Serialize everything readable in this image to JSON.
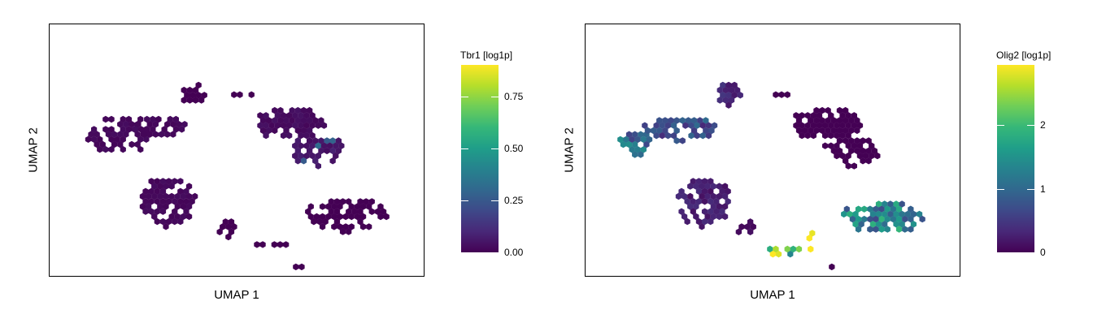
{
  "chart_data": [
    {
      "type": "scatter",
      "xlabel": "UMAP 1",
      "ylabel": "UMAP 2",
      "legend_title": "Tbr1 [log1p]",
      "colorbar_ticks": [
        "0.00",
        "0.25",
        "0.50",
        "0.75"
      ],
      "colorbar_tick_values": [
        0.0,
        0.25,
        0.5,
        0.75
      ],
      "color_range": [
        0.0,
        0.9
      ],
      "colormap": "viridis",
      "legend_placement": "right",
      "clusters": [
        {
          "cx": 0.148,
          "cy": 0.885,
          "rx": 0.012,
          "ry": 0.01,
          "density": 0.9,
          "value": 0.05,
          "hot": 0.8
        },
        {
          "cx": 0.455,
          "cy": 0.96,
          "rx": 0.006,
          "ry": 0.012,
          "density": 0.8,
          "value": 0.0
        },
        {
          "cx": 0.385,
          "cy": 0.73,
          "rx": 0.035,
          "ry": 0.05,
          "density": 0.75,
          "value": 0.0
        },
        {
          "cx": 0.52,
          "cy": 0.73,
          "rx": 0.06,
          "ry": 0.012,
          "density": 0.5,
          "value": 0.0
        },
        {
          "cx": 0.185,
          "cy": 0.565,
          "rx": 0.09,
          "ry": 0.08,
          "density": 0.7,
          "value": 0.02
        },
        {
          "cx": 0.285,
          "cy": 0.6,
          "rx": 0.08,
          "ry": 0.045,
          "density": 0.7,
          "value": 0.02
        },
        {
          "cx": 0.645,
          "cy": 0.61,
          "rx": 0.1,
          "ry": 0.07,
          "density": 0.85,
          "value": 0.03
        },
        {
          "cx": 0.71,
          "cy": 0.5,
          "rx": 0.08,
          "ry": 0.06,
          "density": 0.75,
          "value": 0.06,
          "hot": 0.45
        },
        {
          "cx": 0.315,
          "cy": 0.3,
          "rx": 0.075,
          "ry": 0.1,
          "density": 0.8,
          "value": 0.02
        },
        {
          "cx": 0.79,
          "cy": 0.25,
          "rx": 0.11,
          "ry": 0.07,
          "density": 0.7,
          "value": 0.0
        },
        {
          "cx": 0.475,
          "cy": 0.2,
          "rx": 0.03,
          "ry": 0.04,
          "density": 0.6,
          "value": 0.0
        },
        {
          "cx": 0.57,
          "cy": 0.13,
          "rx": 0.08,
          "ry": 0.02,
          "density": 0.55,
          "value": 0.0
        },
        {
          "cx": 0.66,
          "cy": 0.05,
          "rx": 0.02,
          "ry": 0.012,
          "density": 0.8,
          "value": 0.0
        },
        {
          "cx": 0.055,
          "cy": 0.3,
          "rx": 0.012,
          "ry": 0.006,
          "density": 0.8,
          "value": 0.0
        },
        {
          "cx": 0.955,
          "cy": 0.5,
          "rx": 0.012,
          "ry": 0.008,
          "density": 0.8,
          "value": 0.0
        },
        {
          "cx": 0.43,
          "cy": 0.45,
          "rx": 0.008,
          "ry": 0.008,
          "density": 0.8,
          "value": 0.0
        }
      ]
    },
    {
      "type": "scatter",
      "xlabel": "UMAP 1",
      "ylabel": "UMAP 2",
      "legend_title": "Olig2 [log1p]",
      "colorbar_ticks": [
        "0",
        "1",
        "2"
      ],
      "colorbar_tick_values": [
        0,
        1,
        2
      ],
      "color_range": [
        0.0,
        2.95
      ],
      "colormap": "viridis",
      "legend_placement": "right",
      "clusters": [
        {
          "cx": 0.148,
          "cy": 0.86,
          "rx": 0.012,
          "ry": 0.01,
          "density": 0.9,
          "value": 0.0
        },
        {
          "cx": 0.455,
          "cy": 0.96,
          "rx": 0.006,
          "ry": 0.012,
          "density": 0.8,
          "value": 0.0
        },
        {
          "cx": 0.385,
          "cy": 0.73,
          "rx": 0.035,
          "ry": 0.05,
          "density": 0.75,
          "value": 0.35
        },
        {
          "cx": 0.52,
          "cy": 0.73,
          "rx": 0.06,
          "ry": 0.012,
          "density": 0.5,
          "value": 0.0
        },
        {
          "cx": 0.13,
          "cy": 0.53,
          "rx": 0.045,
          "ry": 0.055,
          "density": 0.8,
          "value": 1.1
        },
        {
          "cx": 0.25,
          "cy": 0.59,
          "rx": 0.1,
          "ry": 0.05,
          "density": 0.7,
          "value": 0.7
        },
        {
          "cx": 0.645,
          "cy": 0.61,
          "rx": 0.1,
          "ry": 0.07,
          "density": 0.85,
          "value": 0.0
        },
        {
          "cx": 0.71,
          "cy": 0.5,
          "rx": 0.08,
          "ry": 0.06,
          "density": 0.75,
          "value": 0.0
        },
        {
          "cx": 0.315,
          "cy": 0.3,
          "rx": 0.075,
          "ry": 0.1,
          "density": 0.8,
          "value": 0.25
        },
        {
          "cx": 0.79,
          "cy": 0.24,
          "rx": 0.11,
          "ry": 0.07,
          "density": 0.8,
          "value": 1.3
        },
        {
          "cx": 0.43,
          "cy": 0.2,
          "rx": 0.03,
          "ry": 0.04,
          "density": 0.6,
          "value": 0.1
        },
        {
          "cx": 0.53,
          "cy": 0.11,
          "rx": 0.07,
          "ry": 0.022,
          "density": 0.7,
          "value": 2.1
        },
        {
          "cx": 0.6,
          "cy": 0.17,
          "rx": 0.012,
          "ry": 0.025,
          "density": 0.9,
          "value": 2.7
        },
        {
          "cx": 0.66,
          "cy": 0.05,
          "rx": 0.02,
          "ry": 0.012,
          "density": 0.8,
          "value": 0.0
        },
        {
          "cx": 0.055,
          "cy": 0.3,
          "rx": 0.012,
          "ry": 0.006,
          "density": 0.8,
          "value": 0.0
        },
        {
          "cx": 0.955,
          "cy": 0.5,
          "rx": 0.012,
          "ry": 0.008,
          "density": 0.8,
          "value": 0.0
        },
        {
          "cx": 0.245,
          "cy": 0.49,
          "rx": 0.006,
          "ry": 0.02,
          "density": 0.9,
          "value": 2.4
        }
      ]
    }
  ]
}
